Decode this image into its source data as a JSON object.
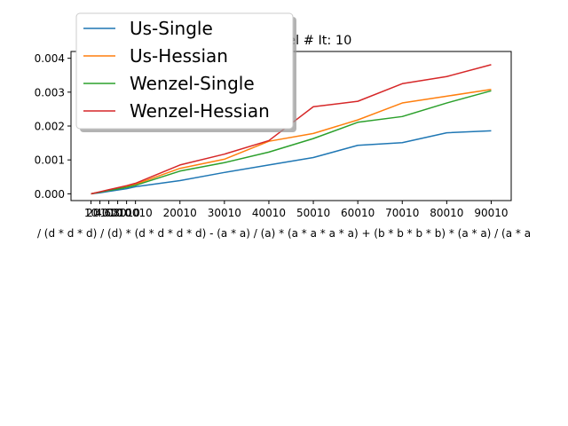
{
  "chart_data": {
    "type": "line",
    "title": "vs. Wenzel # It: 10",
    "xlabel": "/ (d * d * d) / (d) * (d * d * d * d) - (a * a) / (a) * (a * a * a * a) + (b * b * b * b) * (a * a) / (a * a",
    "ylabel": "",
    "x": [
      10,
      2010,
      4010,
      6010,
      8010,
      10010,
      20010,
      30010,
      40010,
      50010,
      60010,
      70010,
      80010,
      90010
    ],
    "x_tick_labels": [
      "10",
      "2010",
      "4010",
      "6010",
      "8010",
      "10010",
      "20010",
      "30010",
      "40010",
      "50010",
      "60010",
      "70010",
      "80010",
      "90010"
    ],
    "y_tick_labels": [
      "0.000",
      "0.001",
      "0.002",
      "0.003",
      "0.004"
    ],
    "y_ticks": [
      0,
      0.001,
      0.002,
      0.003,
      0.004
    ],
    "xlim": [
      -4490,
      94510
    ],
    "ylim": [
      -0.0002,
      0.0042
    ],
    "grid": false,
    "legend_position": "top-left",
    "series": [
      {
        "name": "Us-Single",
        "color": "#1f77b4",
        "values": [
          0.0,
          3e-05,
          7e-05,
          0.00011,
          0.00015,
          0.00021,
          0.00039,
          0.00063,
          0.00085,
          0.00107,
          0.00143,
          0.00151,
          0.0018,
          0.00186
        ]
      },
      {
        "name": "Us-Hessian",
        "color": "#ff7f0e",
        "values": [
          0.0,
          5e-05,
          0.0001,
          0.00015,
          0.00021,
          0.00028,
          0.00075,
          0.00102,
          0.00155,
          0.00178,
          0.00218,
          0.00268,
          0.00288,
          0.00308
        ]
      },
      {
        "name": "Wenzel-Single",
        "color": "#2ca02c",
        "values": [
          0.0,
          5e-05,
          0.0001,
          0.00014,
          0.00019,
          0.00025,
          0.00067,
          0.00092,
          0.00123,
          0.00163,
          0.00211,
          0.00228,
          0.00268,
          0.00304
        ]
      },
      {
        "name": "Wenzel-Hessian",
        "color": "#d62728",
        "values": [
          0.0,
          6e-05,
          0.00012,
          0.00018,
          0.00024,
          0.00031,
          0.00085,
          0.00117,
          0.00157,
          0.00257,
          0.00273,
          0.00325,
          0.00346,
          0.00381
        ]
      }
    ]
  }
}
